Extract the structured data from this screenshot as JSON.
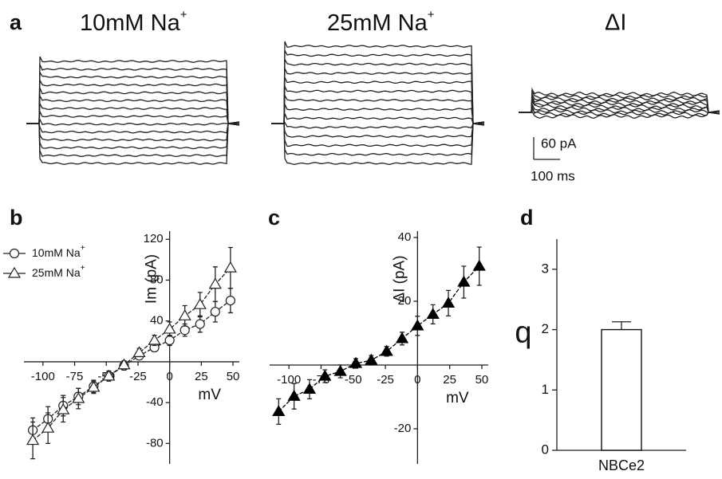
{
  "panel_a": {
    "label": "a",
    "titles": [
      {
        "text": "10mM Na",
        "sup": "+"
      },
      {
        "text": "25mM Na",
        "sup": "+"
      },
      {
        "text": "ΔI"
      }
    ],
    "scale_y": "60 pA",
    "scale_x": "100 ms"
  },
  "chart_data": [
    {
      "type": "line",
      "label": "b",
      "xlabel": "mV",
      "ylabel": "Im (pA)",
      "x": [
        -108,
        -96,
        -84,
        -72,
        -60,
        -48,
        -36,
        -24,
        -12,
        0,
        12,
        24,
        36,
        48
      ],
      "series": [
        {
          "name": "10mM Na",
          "name_superscript": "+",
          "marker": "open-circle",
          "color": "#222",
          "values": [
            -67,
            -56,
            -43,
            -34,
            -24,
            -14,
            -4,
            6,
            14,
            21,
            31,
            37,
            49,
            60
          ],
          "errors": [
            12,
            12,
            10,
            8,
            6,
            5,
            4,
            4,
            4,
            5,
            6,
            8,
            10,
            12
          ]
        },
        {
          "name": "25mM Na",
          "name_superscript": "+",
          "marker": "open-triangle",
          "color": "#222",
          "values": [
            -77,
            -65,
            -47,
            -36,
            -25,
            -14,
            -3,
            9,
            21,
            32,
            45,
            56,
            76,
            92
          ],
          "errors": [
            18,
            15,
            12,
            10,
            6,
            4,
            4,
            4,
            5,
            7,
            10,
            12,
            17,
            20
          ]
        }
      ],
      "xlim": [
        -115,
        55
      ],
      "ylim": [
        -100,
        128
      ],
      "xticks": [
        -100,
        -75,
        -50,
        -25,
        0,
        25,
        50
      ],
      "yticks": [
        -80,
        -40,
        40,
        80,
        120
      ]
    },
    {
      "type": "line",
      "label": "c",
      "xlabel": "mV",
      "ylabel": "ΔI (pA)",
      "x": [
        -108,
        -96,
        -84,
        -72,
        -60,
        -48,
        -36,
        -24,
        -12,
        0,
        12,
        24,
        36,
        48
      ],
      "series": [
        {
          "name": "ΔI",
          "marker": "filled-triangle",
          "color": "#000",
          "values": [
            -14.6,
            -9.8,
            -7.6,
            -3.5,
            -2,
            0.5,
            1.5,
            4.3,
            8.3,
            12.3,
            15.9,
            19.4,
            26,
            31
          ],
          "errors": [
            4,
            4,
            3,
            2,
            2,
            1.5,
            1.5,
            1.5,
            2,
            3,
            3,
            4,
            5,
            6
          ]
        }
      ],
      "xlim": [
        -115,
        55
      ],
      "ylim": [
        -31,
        42
      ],
      "xticks": [
        -100,
        -75,
        -50,
        -25,
        0,
        25,
        50
      ],
      "yticks": [
        -20,
        20,
        40
      ]
    },
    {
      "type": "bar",
      "label": "d",
      "ylabel": "q",
      "categories": [
        "NBCe2"
      ],
      "values": [
        2.0
      ],
      "errors": [
        0.13
      ],
      "color": "#fff",
      "ylim": [
        0,
        3.5
      ],
      "yticks": [
        0,
        1,
        2,
        3
      ]
    }
  ]
}
